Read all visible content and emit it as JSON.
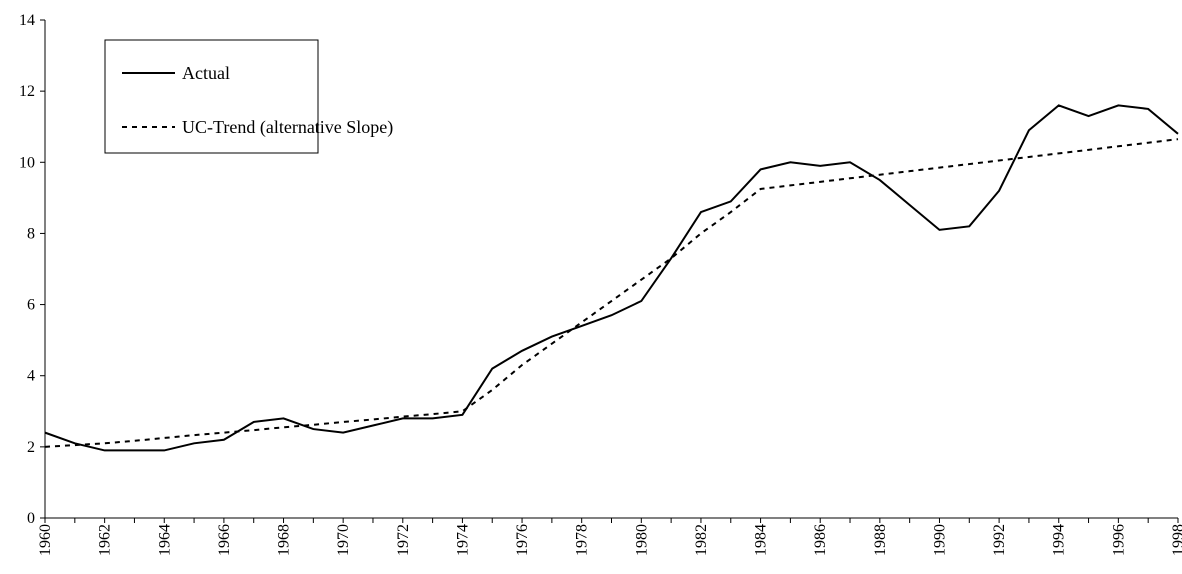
{
  "chart_data": {
    "type": "line",
    "x": [
      1960,
      1961,
      1962,
      1963,
      1964,
      1965,
      1966,
      1967,
      1968,
      1969,
      1970,
      1971,
      1972,
      1973,
      1974,
      1975,
      1976,
      1977,
      1978,
      1979,
      1980,
      1981,
      1982,
      1983,
      1984,
      1985,
      1986,
      1987,
      1988,
      1989,
      1990,
      1991,
      1992,
      1993,
      1994,
      1995,
      1996,
      1997,
      1998
    ],
    "series": [
      {
        "name": "Actual",
        "color": "#000000",
        "line_style": "solid",
        "values": [
          2.4,
          2.1,
          1.9,
          1.9,
          1.9,
          2.1,
          2.2,
          2.7,
          2.8,
          2.5,
          2.4,
          2.6,
          2.8,
          2.8,
          2.9,
          4.2,
          4.7,
          5.1,
          5.4,
          5.7,
          6.1,
          7.3,
          8.6,
          8.9,
          9.8,
          10.0,
          9.9,
          10.0,
          9.5,
          8.8,
          8.1,
          8.2,
          9.2,
          10.9,
          11.6,
          11.3,
          11.6,
          11.5,
          10.8
        ]
      },
      {
        "name": "UC-Trend (alternative Slope)",
        "color": "#000000",
        "line_style": "dashed",
        "values": [
          2.0,
          2.05,
          2.1,
          2.17,
          2.25,
          2.33,
          2.4,
          2.47,
          2.55,
          2.62,
          2.7,
          2.77,
          2.85,
          2.92,
          3.0,
          3.6,
          4.3,
          4.9,
          5.5,
          6.1,
          6.7,
          7.3,
          8.0,
          8.6,
          9.25,
          9.35,
          9.45,
          9.55,
          9.65,
          9.75,
          9.85,
          9.95,
          10.05,
          10.15,
          10.25,
          10.35,
          10.45,
          10.55,
          10.65
        ]
      }
    ],
    "xlim": [
      1960,
      1998
    ],
    "xticks": [
      1960,
      1962,
      1964,
      1966,
      1968,
      1970,
      1972,
      1974,
      1976,
      1978,
      1980,
      1982,
      1984,
      1986,
      1988,
      1990,
      1992,
      1994,
      1996,
      1998
    ],
    "ylim": [
      0,
      14
    ],
    "yticks": [
      0,
      2,
      4,
      6,
      8,
      10,
      12,
      14
    ],
    "grid": false,
    "legend": "upper left"
  }
}
